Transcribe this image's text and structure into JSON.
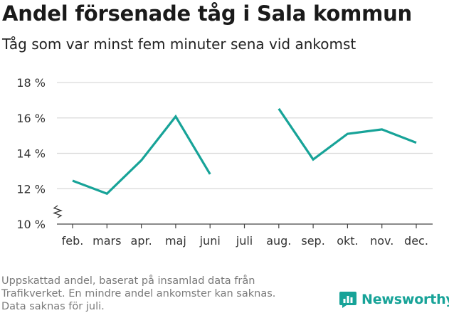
{
  "title": "Andel försenade tåg i Sala kommun",
  "subtitle": "Tåg som var minst fem minuter sena vid ankomst",
  "footnote": [
    "Uppskattad andel, baserat på insamlad data från",
    "Trafikverket. En mindre andel ankomster kan saknas.",
    "Data saknas för juli."
  ],
  "brand": {
    "name": "Newsworthy",
    "icon": "bar-chart-logo-icon",
    "color": "#17a398"
  },
  "chart_data": {
    "type": "line",
    "categories": [
      "feb.",
      "mars",
      "apr.",
      "maj",
      "juni",
      "juli",
      "aug.",
      "sep.",
      "okt.",
      "nov.",
      "dec."
    ],
    "series": [
      {
        "values": [
          12.45,
          11.72,
          13.6,
          16.08,
          12.82,
          null,
          16.52,
          13.65,
          15.1,
          15.35,
          14.6
        ]
      }
    ],
    "y_ticks": [
      10,
      12,
      14,
      16,
      18
    ],
    "y_tick_labels": [
      "10 %",
      "12 %",
      "14 %",
      "16 %",
      "18 %"
    ],
    "ylim": [
      10,
      18
    ],
    "grid": true,
    "axis_break": true,
    "line_color": "#17a398"
  }
}
